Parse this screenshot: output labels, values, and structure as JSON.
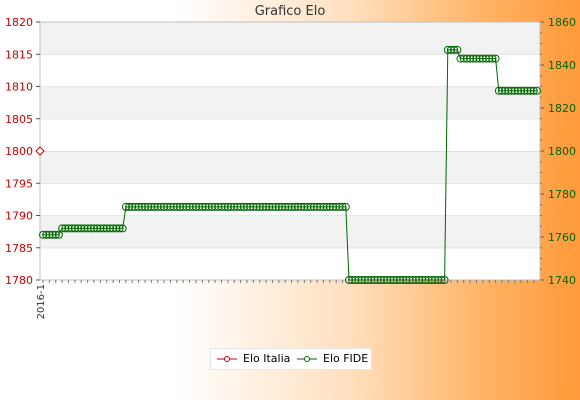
{
  "chart_data": {
    "type": "line",
    "title": "Grafico Elo",
    "xlabel": "",
    "ylabel": "",
    "y_left": {
      "min": 1780,
      "max": 1820,
      "ticks": [
        1780,
        1785,
        1790,
        1795,
        1800,
        1805,
        1810,
        1815,
        1820
      ],
      "color": "#cc0000"
    },
    "y_right": {
      "min": 1740,
      "max": 1860,
      "ticks": [
        1740,
        1760,
        1780,
        1800,
        1820,
        1840,
        1860
      ],
      "color": "#006600"
    },
    "grid": true,
    "legend_position": "bottom",
    "x_first_label": "2016-1",
    "series": [
      {
        "name": "Elo Italia",
        "color": "#cc0000",
        "axis": "left",
        "x": [
          0
        ],
        "values": [
          1800
        ]
      },
      {
        "name": "Elo FIDE",
        "color": "#006600",
        "axis": "right",
        "segments": [
          {
            "from": 0,
            "to": 5,
            "value": 1761
          },
          {
            "from": 6,
            "to": 25,
            "value": 1764
          },
          {
            "from": 26,
            "to": 95,
            "value": 1774
          },
          {
            "from": 96,
            "to": 126,
            "value": 1740
          },
          {
            "from": 127,
            "to": 130,
            "value": 1847
          },
          {
            "from": 131,
            "to": 142,
            "value": 1843
          },
          {
            "from": 143,
            "to": 155,
            "value": 1828
          }
        ],
        "total_points": 156
      }
    ]
  }
}
